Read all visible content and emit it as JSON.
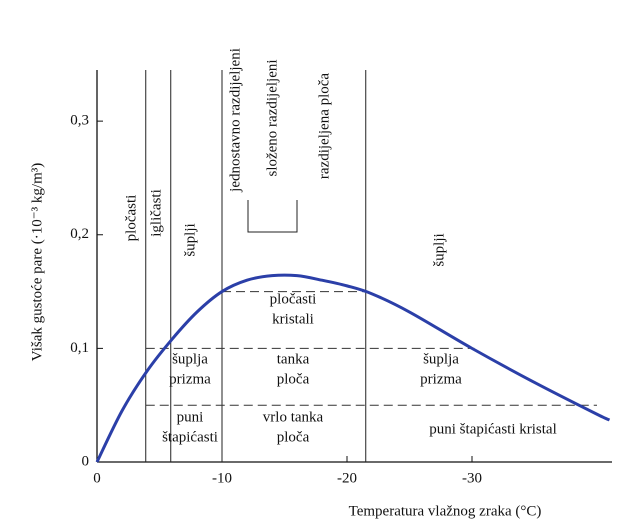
{
  "chart_data": {
    "type": "line",
    "x_label": "Temperatura vlažnog zraka (°C)",
    "y_label": "Višak gustoće pare (·10⁻³ kg/m³)",
    "x": [
      0,
      -2,
      -4,
      -6,
      -8,
      -10,
      -12,
      -14,
      -16,
      -18,
      -20,
      -22,
      -25,
      -30,
      -35,
      -40,
      -41
    ],
    "series": [
      {
        "color": "#2b3fa8",
        "values": [
          0,
          0.045,
          0.08,
          0.108,
          0.132,
          0.15,
          0.16,
          0.164,
          0.164,
          0.16,
          0.155,
          0.148,
          0.132,
          0.1,
          0.07,
          0.042,
          0.037
        ]
      }
    ],
    "xlim": [
      0,
      -41.2
    ],
    "ylim": [
      0,
      0.345
    ],
    "xticks": [
      0,
      -10,
      -20,
      -30
    ],
    "yticks": [
      0,
      {
        "value": 0.1,
        "label": "0,1"
      },
      {
        "value": 0.2,
        "label": "0,2"
      },
      {
        "value": 0.3,
        "label": "0,3"
      }
    ],
    "vlines": [
      -3.9,
      -5.9,
      -10,
      -21.5
    ],
    "hlines": [
      {
        "y": 0.15,
        "x": [
          -10,
          -21.5
        ]
      },
      {
        "y": 0.1,
        "x": [
          -3.9,
          -30.2
        ]
      },
      {
        "y": 0.05,
        "x": [
          -3.9,
          -40
        ]
      }
    ],
    "labels": [
      [
        "pločasti"
      ],
      [
        "igličasti"
      ],
      [
        "šuplji"
      ],
      [
        "jednostavno razdijeljeni"
      ],
      [
        "složeno razdijeljeni"
      ],
      [
        "razdijeljena ploča"
      ],
      [
        "šuplji"
      ],
      [
        "pločasti",
        "kristali"
      ],
      [
        "šuplja",
        "prizma"
      ],
      [
        "tanka",
        "ploča"
      ],
      [
        "šuplja",
        "prizma"
      ],
      [
        "puni",
        "štapićasti"
      ],
      [
        "vrlo tanka",
        "ploča"
      ],
      [
        "puni štapićasti kristal"
      ]
    ]
  }
}
